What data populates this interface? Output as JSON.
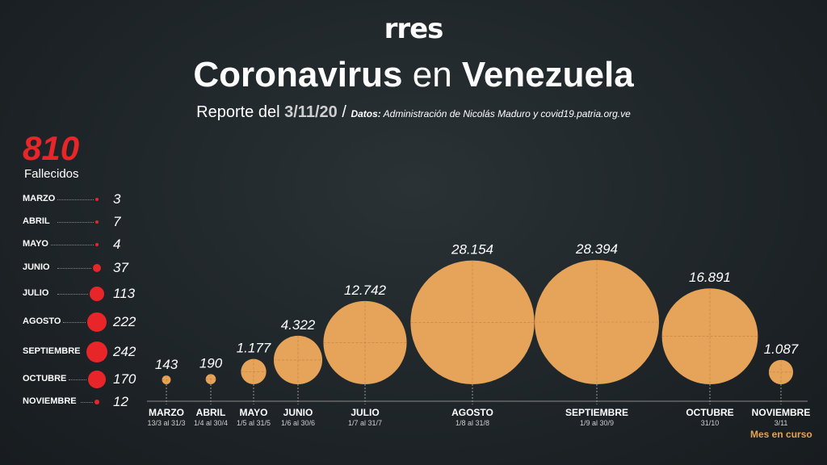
{
  "header": {
    "logo": "rres",
    "title_part1": "Coronavirus",
    "title_part2": "en",
    "title_part3": "Venezuela",
    "report_prefix": "Reporte del",
    "report_date": "3/11/20",
    "slash": "/",
    "source_label": "Datos:",
    "source_text": "Administración de Nicolás Maduro y covid19.patria.org.ve"
  },
  "deaths": {
    "total": "810",
    "label": "Fallecidos",
    "items": [
      {
        "month": "MARZO",
        "value": 3
      },
      {
        "month": "ABRIL",
        "value": 7
      },
      {
        "month": "MAYO",
        "value": 4
      },
      {
        "month": "JUNIO",
        "value": 37
      },
      {
        "month": "JULIO",
        "value": 113
      },
      {
        "month": "AGOSTO",
        "value": 222
      },
      {
        "month": "SEPTIEMBRE",
        "value": 242
      },
      {
        "month": "OCTUBRE",
        "value": 170
      },
      {
        "month": "NOVIEMBRE",
        "value": 12
      }
    ]
  },
  "chart_data": {
    "type": "bubble",
    "categories": [
      "MARZO",
      "ABRIL",
      "MAYO",
      "JUNIO",
      "JULIO",
      "AGOSTO",
      "SEPTIEMBRE",
      "OCTUBRE",
      "NOVIEMBRE"
    ],
    "date_ranges": [
      "13/3 al 31/3",
      "1/4 al 30/4",
      "1/5 al 31/5",
      "1/6 al 30/6",
      "1/7 al 31/7",
      "1/8 al 31/8",
      "1/9 al 30/9",
      "31/10",
      "3/11"
    ],
    "values": [
      143,
      190,
      1177,
      4322,
      12742,
      28154,
      28394,
      16891,
      1087
    ],
    "value_labels": [
      "143",
      "190",
      "1.177",
      "4.322",
      "12.742",
      "28.154",
      "28.394",
      "16.891",
      "1.087"
    ],
    "note": "Mes en curso",
    "bubble_color": "#e6a35a"
  }
}
